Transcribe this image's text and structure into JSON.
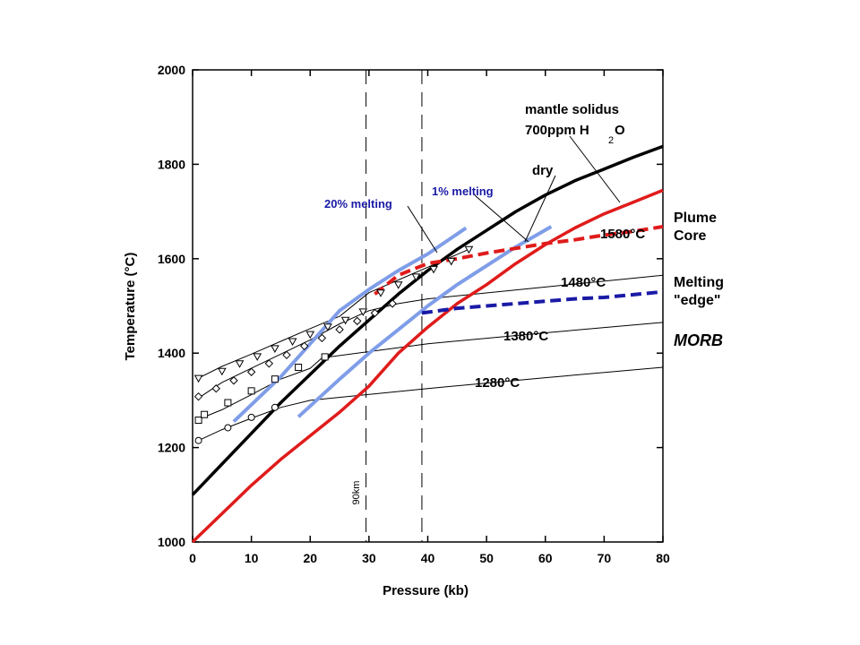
{
  "chart_data": {
    "type": "line",
    "xlabel": "Pressure (kb)",
    "ylabel": "Temperature (°C)",
    "xlim": [
      0,
      80
    ],
    "ylim": [
      1000,
      2000
    ],
    "xticks": [
      0,
      10,
      20,
      30,
      40,
      50,
      60,
      70,
      80
    ],
    "yticks": [
      1000,
      1200,
      1400,
      1600,
      1800,
      2000
    ],
    "grid": false,
    "series": [
      {
        "key": "dry",
        "color": "#000000",
        "width": 3.5,
        "dash": "",
        "x": [
          0,
          5,
          10,
          15,
          20,
          25,
          30,
          35,
          40,
          45,
          50,
          55,
          60,
          65,
          70,
          75,
          80
        ],
        "y": [
          1100,
          1165,
          1230,
          1295,
          1355,
          1415,
          1470,
          1525,
          1575,
          1620,
          1660,
          1700,
          1735,
          1765,
          1790,
          1815,
          1838
        ]
      },
      {
        "key": "solidus_wet",
        "color": "#e01b1b",
        "width": 3.5,
        "dash": "",
        "x": [
          0,
          5,
          10,
          15,
          20,
          25,
          30,
          35,
          40,
          45,
          50,
          55,
          60,
          65,
          70,
          75,
          80
        ],
        "y": [
          1000,
          1060,
          1120,
          1175,
          1225,
          1275,
          1330,
          1400,
          1455,
          1505,
          1545,
          1590,
          1630,
          1665,
          1695,
          1720,
          1745
        ]
      },
      {
        "key": "plume_core",
        "color": "#e01b1b",
        "width": 4,
        "dash": "12,6",
        "x": [
          31,
          35,
          40,
          45,
          50,
          55,
          60,
          65,
          70,
          75,
          80
        ],
        "y": [
          1525,
          1565,
          1590,
          1600,
          1612,
          1622,
          1632,
          1640,
          1650,
          1658,
          1668
        ]
      },
      {
        "key": "melting_edge",
        "color": "#1a1aa6",
        "width": 4,
        "dash": "12,6",
        "x": [
          39,
          45,
          50,
          55,
          60,
          65,
          70,
          75,
          80
        ],
        "y": [
          1485,
          1495,
          1500,
          1505,
          1510,
          1515,
          1518,
          1524,
          1530
        ]
      },
      {
        "key": "melt20",
        "color": "#7f9de8",
        "width": 4,
        "dash": "",
        "x": [
          7,
          15,
          20,
          25,
          30,
          35,
          40,
          46.5
        ],
        "y": [
          1255,
          1350,
          1420,
          1490,
          1535,
          1575,
          1610,
          1665
        ]
      },
      {
        "key": "melt1",
        "color": "#7f9de8",
        "width": 4,
        "dash": "",
        "x": [
          18,
          25,
          30,
          35,
          40,
          45,
          50,
          55,
          61
        ],
        "y": [
          1265,
          1345,
          1400,
          1450,
          1500,
          1545,
          1585,
          1625,
          1668
        ]
      },
      {
        "key": "adiabat1580",
        "color": "#000000",
        "width": 1,
        "dash": "",
        "x": [
          1,
          5,
          10,
          15,
          20,
          25,
          30,
          35,
          40,
          47
        ],
        "y": [
          1347,
          1372,
          1398,
          1425,
          1452,
          1478,
          1528,
          1555,
          1582,
          1620
        ]
      },
      {
        "key": "adiabat1480",
        "color": "#000000",
        "width": 1,
        "dash": "",
        "x": [
          1,
          5,
          10,
          15,
          20,
          25,
          30,
          35,
          40,
          60,
          80
        ],
        "y": [
          1305,
          1338,
          1368,
          1398,
          1428,
          1462,
          1490,
          1505,
          1515,
          1540,
          1565
        ]
      },
      {
        "key": "adiabat1380",
        "color": "#000000",
        "width": 1,
        "dash": "",
        "x": [
          1,
          5,
          10,
          15,
          20,
          22,
          40,
          60,
          80
        ],
        "y": [
          1260,
          1280,
          1312,
          1345,
          1368,
          1390,
          1420,
          1443,
          1465
        ]
      },
      {
        "key": "adiabat1280",
        "color": "#000000",
        "width": 1,
        "dash": "",
        "x": [
          1,
          5,
          10,
          15,
          20,
          40,
          60,
          80
        ],
        "y": [
          1215,
          1238,
          1262,
          1285,
          1300,
          1325,
          1348,
          1370
        ]
      }
    ],
    "markers": [
      {
        "shape": "triangle",
        "x": [
          1,
          5,
          8,
          11,
          14,
          17,
          20,
          23,
          26,
          29,
          32,
          35,
          38,
          41,
          44,
          47
        ],
        "y": [
          1347,
          1362,
          1378,
          1393,
          1410,
          1425,
          1440,
          1456,
          1470,
          1488,
          1528,
          1545,
          1562,
          1578,
          1595,
          1620
        ]
      },
      {
        "shape": "diamond",
        "x": [
          1,
          4,
          7,
          10,
          13,
          16,
          19,
          22,
          25,
          28,
          31,
          34
        ],
        "y": [
          1308,
          1325,
          1342,
          1360,
          1378,
          1396,
          1415,
          1432,
          1450,
          1468,
          1485,
          1505
        ]
      },
      {
        "shape": "square",
        "x": [
          1,
          2,
          6,
          10,
          14,
          18,
          22.5
        ],
        "y": [
          1258,
          1270,
          1295,
          1320,
          1345,
          1370,
          1392
        ]
      },
      {
        "shape": "circle",
        "x": [
          1,
          6,
          10,
          14
        ],
        "y": [
          1215,
          1242,
          1264,
          1285
        ]
      }
    ],
    "vlines": [
      29.5,
      39
    ],
    "labels": {
      "solidus_title_1": "mantle solidus",
      "solidus_title_2": "700ppm H",
      "solidus_sub": "2",
      "solidus_o": "O",
      "dry": "dry",
      "melt20": "20% melting",
      "melt1": "1% melting",
      "t1580": "1580°C",
      "t1480": "1480°C",
      "t1380": "1380°C",
      "t1280": "1280°C",
      "plume_1": "Plume",
      "plume_2": "Core",
      "edge_1": "Melting",
      "edge_2": "\"edge\"",
      "morb": "MORB",
      "km90": "90km"
    }
  }
}
